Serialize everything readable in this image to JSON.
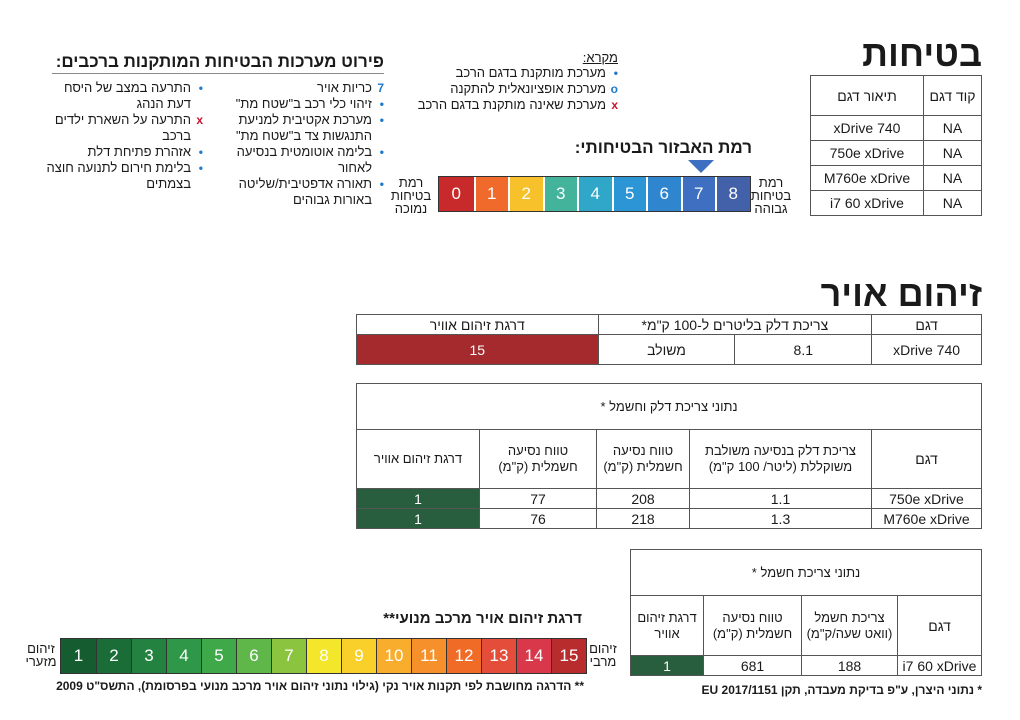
{
  "safety": {
    "title": "בטיחות",
    "table": {
      "headers": [
        "קוד דגם",
        "תיאור דגם"
      ],
      "rows": [
        [
          "NA",
          "740 xDrive"
        ],
        [
          "NA",
          "750e xDrive"
        ],
        [
          "NA",
          "M760e xDrive"
        ],
        [
          "NA",
          "i7 60 xDrive"
        ]
      ]
    },
    "systems_title": "פירוט מערכות הבטיחות המותקנות ברכבים:",
    "legend": {
      "title": "מקרא:",
      "items": [
        {
          "symbol": "•",
          "text": "מערכת מותקנת בדגם הרכב",
          "color": "#1f78c8"
        },
        {
          "symbol": "o",
          "text": "מערכת אופציונאלית להתקנה",
          "color": "#1f78c8"
        },
        {
          "symbol": "x",
          "text": "מערכת שאינה מותקנת בדגם הרכב",
          "color": "#c8102e"
        }
      ]
    },
    "systems_col_right": [
      {
        "symbol": "7",
        "text": "כריות אויר"
      },
      {
        "symbol": "•",
        "text": "זיהוי כלי רכב ב\"שטח מת\""
      },
      {
        "symbol": "•",
        "text": "מערכת אקטיבית למניעת התנגשות צד ב\"שטח מת\""
      },
      {
        "symbol": "•",
        "text": "בלימה אוטומטית בנסיעה לאחור"
      },
      {
        "symbol": "•",
        "text": "תאורה אדפטיבית/שליטה באורות גבוהים"
      }
    ],
    "systems_col_left": [
      {
        "symbol": "•",
        "text": "התרעה במצב של היסח דעת הנהג"
      },
      {
        "symbol": "x",
        "text": "התרעה על השארת ילדים ברכב"
      },
      {
        "symbol": "•",
        "text": "אזהרת פתיחת דלת"
      },
      {
        "symbol": "•",
        "text": "בלימת חירום לתנועה חוצה בצמתים"
      }
    ],
    "level_title": "רמת האבזור הבטיחותי:",
    "level_selected": 7,
    "scale": {
      "high_label": "רמת בטיחות גבוהה",
      "low_label": "רמת בטיחות נמוכה",
      "steps": [
        {
          "n": "8",
          "color": "#4361a8"
        },
        {
          "n": "7",
          "color": "#3f6fc0"
        },
        {
          "n": "6",
          "color": "#2f86cf"
        },
        {
          "n": "5",
          "color": "#2b95d6"
        },
        {
          "n": "4",
          "color": "#30a6c8"
        },
        {
          "n": "3",
          "color": "#43b39c"
        },
        {
          "n": "2",
          "color": "#f6c12a"
        },
        {
          "n": "1",
          "color": "#ef6a2b"
        },
        {
          "n": "0",
          "color": "#c8292a"
        }
      ]
    }
  },
  "pollution": {
    "title": "זיהום אויר",
    "table1": {
      "headers": [
        "דגם",
        "צריכת דלק בליטרים ל-100 ק\"מ*",
        "דרגת זיהום אוויר"
      ],
      "row": {
        "model": "740 xDrive",
        "fuel": "8.1",
        "type": "משולב",
        "grade": "15",
        "grade_color": "#a52a2e"
      }
    },
    "table2": {
      "title": "נתוני צריכת דלק וחשמל *",
      "headers": [
        "דגם",
        "צריכת דלק בנסיעה משולבת משוקללת (ליטר/ 100 ק\"מ)",
        "טווח נסיעה חשמלית (ק\"מ)",
        "טווח נסיעה חשמלית (ק\"מ)",
        "דרגת זיהום אוויר"
      ],
      "rows": [
        {
          "model": "750e xDrive",
          "fuel": "1.1",
          "range1": "208",
          "range2": "77",
          "grade": "1"
        },
        {
          "model": "M760e xDrive",
          "fuel": "1.3",
          "range1": "218",
          "range2": "76",
          "grade": "1"
        }
      ],
      "grade_color": "#285d3d"
    },
    "table3": {
      "title": "נתוני צריכת חשמל *",
      "headers": [
        "דגם",
        "צריכת חשמל (וואט שעה/ק\"מ)",
        "טווח נסיעה חשמלית (ק\"מ)",
        "דרגת זיהום אוויר"
      ],
      "row": {
        "model": "i7 60 xDrive",
        "consumption": "188",
        "range": "681",
        "grade": "1"
      },
      "grade_color": "#285d3d"
    },
    "scale_title": "דרגת זיהום אויר מרכב מנועי**",
    "scale": {
      "max_label": "זיהום מרבי",
      "min_label": "זיהום מזערי",
      "steps": [
        {
          "n": "15",
          "color": "#b82c2d"
        },
        {
          "n": "14",
          "color": "#d8384a"
        },
        {
          "n": "13",
          "color": "#e44d3a"
        },
        {
          "n": "12",
          "color": "#f06b26"
        },
        {
          "n": "11",
          "color": "#f5902a"
        },
        {
          "n": "10",
          "color": "#f9ad2c"
        },
        {
          "n": "9",
          "color": "#f9d02a"
        },
        {
          "n": "8",
          "color": "#f3e62b"
        },
        {
          "n": "7",
          "color": "#8bc53f"
        },
        {
          "n": "6",
          "color": "#5fb649"
        },
        {
          "n": "5",
          "color": "#3fa848"
        },
        {
          "n": "4",
          "color": "#2e9848"
        },
        {
          "n": "3",
          "color": "#238240"
        },
        {
          "n": "2",
          "color": "#1b6d38"
        },
        {
          "n": "1",
          "color": "#155c30"
        }
      ]
    },
    "footnote_grade": "** הדרגה מחושבת לפי תקנות אויר נקי (גילוי נתוני זיהום אויר מרכב מנועי בפרסומת), התשס\"ט 2009",
    "footnote_data": "* נתוני היצרן, ע\"פ בדיקת מעבדה, תקן EU 2017/1151"
  }
}
